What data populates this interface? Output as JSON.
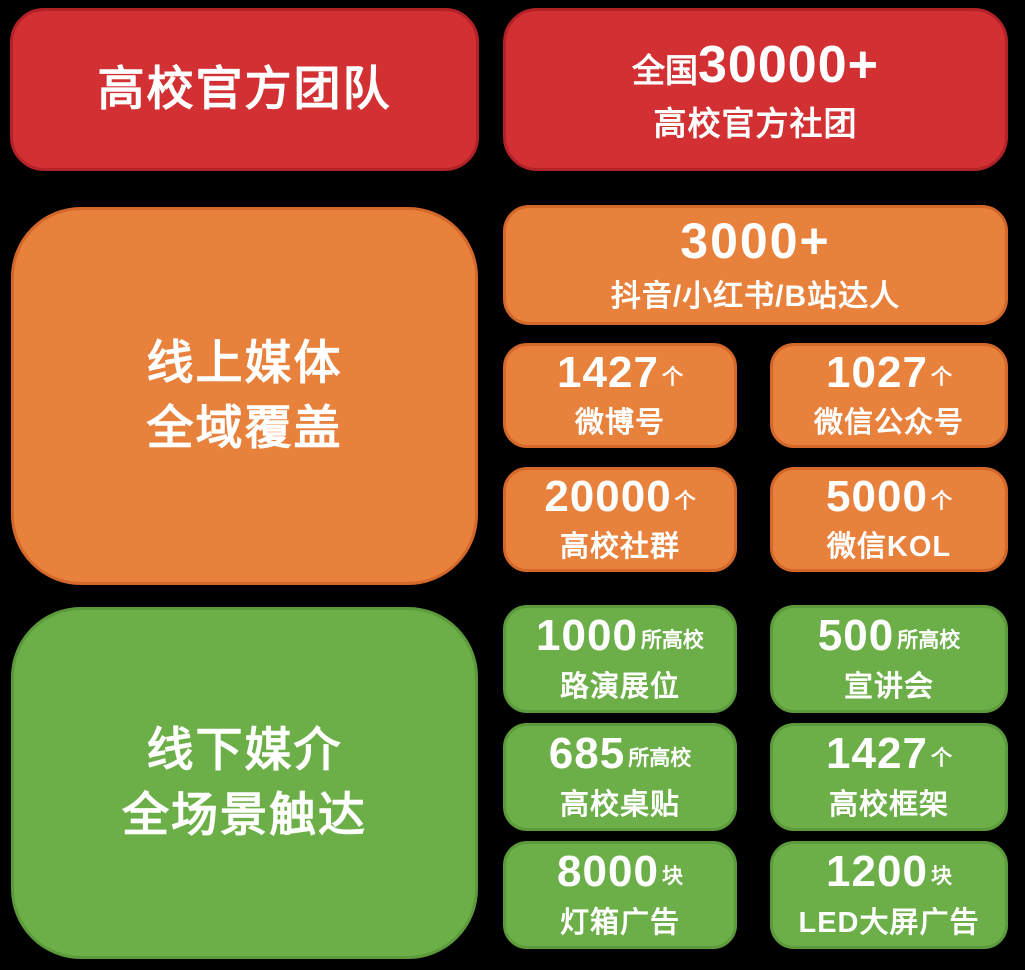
{
  "colors": {
    "red": "#d23032",
    "red_border": "#b22228",
    "orange": "#e8813c",
    "orange_border": "#d3682a",
    "green": "#6cae47",
    "green_border": "#5c9a3b",
    "text": "#ffffff",
    "background": "#000000"
  },
  "sections": {
    "official": {
      "title": "高校官方团队",
      "stat": {
        "prefix": "全国",
        "number": "30000+",
        "label": "高校官方社团"
      }
    },
    "online": {
      "title_line1": "线上媒体",
      "title_line2": "全域覆盖",
      "hero": {
        "number": "3000+",
        "label": "抖音/小红书/B站达人"
      },
      "stats": [
        {
          "number": "1427",
          "unit": "个",
          "label": "微博号"
        },
        {
          "number": "1027",
          "unit": "个",
          "label": "微信公众号"
        },
        {
          "number": "20000",
          "unit": "个",
          "label": "高校社群"
        },
        {
          "number": "5000",
          "unit": "个",
          "label": "微信KOL"
        }
      ]
    },
    "offline": {
      "title_line1": "线下媒介",
      "title_line2": "全场景触达",
      "stats": [
        {
          "number": "1000",
          "unit": "所高校",
          "label": "路演展位"
        },
        {
          "number": "500",
          "unit": "所高校",
          "label": "宣讲会"
        },
        {
          "number": "685",
          "unit": "所高校",
          "label": "高校桌贴"
        },
        {
          "number": "1427",
          "unit": "个",
          "label": "高校框架"
        },
        {
          "number": "8000",
          "unit": "块",
          "label": "灯箱广告"
        },
        {
          "number": "1200",
          "unit": "块",
          "label": "LED大屏广告"
        }
      ]
    }
  }
}
